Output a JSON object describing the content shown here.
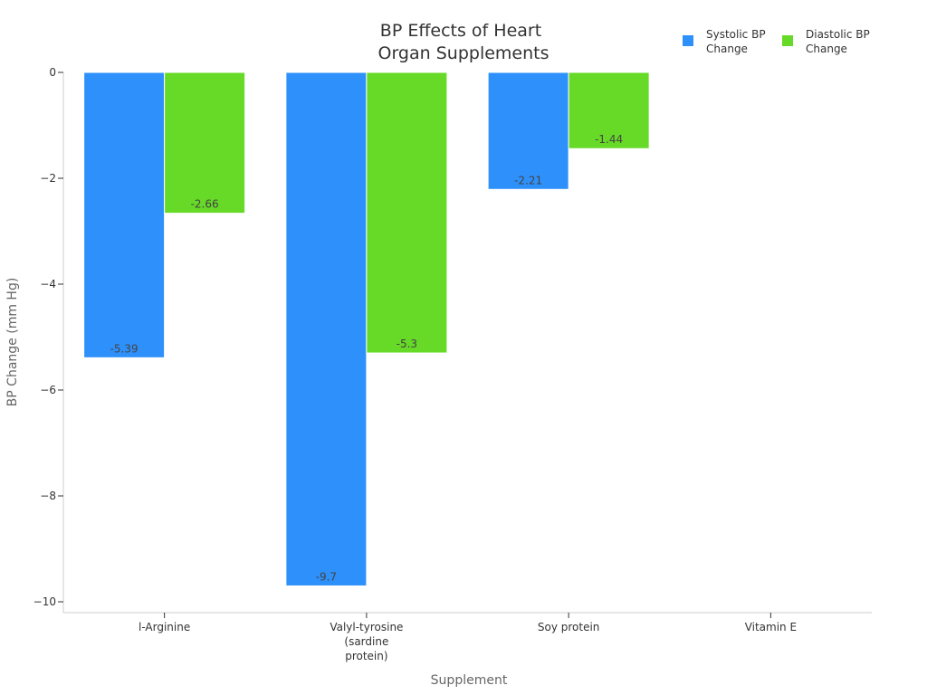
{
  "chart_data": {
    "type": "bar",
    "title": [
      "BP Effects of Heart",
      "Organ Supplements"
    ],
    "xlabel": "Supplement",
    "ylabel": "BP Change (mm Hg)",
    "categories": [
      [
        "l-Arginine"
      ],
      [
        "Valyl-tyrosine",
        "(sardine",
        "protein)"
      ],
      [
        "Soy protein"
      ],
      [
        "Vitamin E"
      ]
    ],
    "series": [
      {
        "name": [
          "Systolic BP",
          "Change"
        ],
        "color": "#2e90fa",
        "values": [
          -5.39,
          -9.7,
          -2.21,
          null
        ]
      },
      {
        "name": [
          "Diastolic BP",
          "Change"
        ],
        "color": "#66da26",
        "values": [
          -2.66,
          -5.3,
          -1.44,
          null
        ]
      }
    ],
    "ylim": [
      -10.2,
      0
    ],
    "yticks": [
      0,
      -2,
      -4,
      -6,
      -8,
      -10
    ],
    "ytick_labels": [
      "0",
      "−2",
      "−4",
      "−6",
      "−8",
      "−10"
    ],
    "grid": false,
    "legend_position": "top-right"
  }
}
